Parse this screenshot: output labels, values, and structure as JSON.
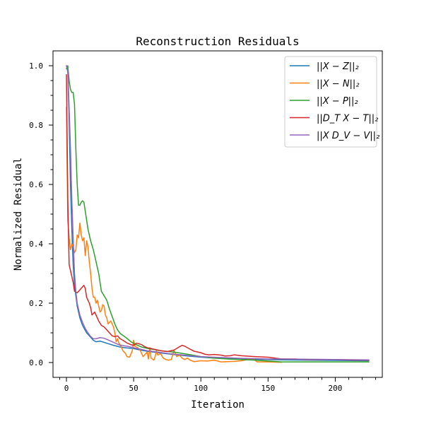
{
  "chart_data": {
    "type": "line",
    "title": "Reconstruction Residuals",
    "xlabel": "Iteration",
    "ylabel": "Normalized Residual",
    "xlim": [
      -10,
      235
    ],
    "ylim": [
      -0.05,
      1.05
    ],
    "x_ticks": [
      0,
      50,
      100,
      150,
      200
    ],
    "x_tick_labels": [
      "0",
      "50",
      "100",
      "150",
      "200"
    ],
    "x_minor_ticks": [
      -5,
      10,
      20,
      30,
      40,
      60,
      70,
      80,
      90,
      110,
      120,
      130,
      140,
      160,
      170,
      180,
      190,
      210,
      220,
      230
    ],
    "y_ticks": [
      0.0,
      0.2,
      0.4,
      0.6,
      0.8,
      1.0
    ],
    "y_tick_labels": [
      "0.0",
      "0.2",
      "0.4",
      "0.6",
      "0.8",
      "1.0"
    ],
    "y_minor_ticks": [
      0.05,
      0.1,
      0.15,
      0.25,
      0.3,
      0.35,
      0.45,
      0.5,
      0.55,
      0.65,
      0.7,
      0.75,
      0.85,
      0.9,
      0.95
    ],
    "grid": false,
    "legend_position": "top-right",
    "series": [
      {
        "name": "||X − Z||₂",
        "color": "#1f77b4",
        "points": [
          [
            0,
            1.0
          ],
          [
            1,
            0.98
          ],
          [
            2,
            0.82
          ],
          [
            3,
            0.6
          ],
          [
            4,
            0.45
          ],
          [
            5,
            0.33
          ],
          [
            6,
            0.26
          ],
          [
            8,
            0.19
          ],
          [
            10,
            0.15
          ],
          [
            12,
            0.125
          ],
          [
            15,
            0.1
          ],
          [
            18,
            0.085
          ],
          [
            20,
            0.075
          ],
          [
            22,
            0.07
          ],
          [
            25,
            0.072
          ],
          [
            28,
            0.068
          ],
          [
            30,
            0.065
          ],
          [
            35,
            0.058
          ],
          [
            40,
            0.052
          ],
          [
            45,
            0.049
          ],
          [
            50,
            0.047
          ],
          [
            55,
            0.042
          ],
          [
            60,
            0.038
          ],
          [
            70,
            0.032
          ],
          [
            80,
            0.027
          ],
          [
            90,
            0.022
          ],
          [
            100,
            0.018
          ],
          [
            110,
            0.015
          ],
          [
            120,
            0.013
          ],
          [
            130,
            0.012
          ],
          [
            140,
            0.011
          ],
          [
            150,
            0.01
          ],
          [
            160,
            0.009
          ],
          [
            180,
            0.008
          ],
          [
            200,
            0.007
          ],
          [
            225,
            0.006
          ]
        ]
      },
      {
        "name": "||X − N||₂",
        "color": "#ff7f0e",
        "points": [
          [
            0,
            0.86
          ],
          [
            1,
            0.48
          ],
          [
            2,
            0.42
          ],
          [
            3,
            0.38
          ],
          [
            4,
            0.4
          ],
          [
            5,
            0.39
          ],
          [
            6,
            0.37
          ],
          [
            7,
            0.38
          ],
          [
            8,
            0.43
          ],
          [
            9,
            0.42
          ],
          [
            10,
            0.47
          ],
          [
            11,
            0.43
          ],
          [
            12,
            0.41
          ],
          [
            13,
            0.42
          ],
          [
            14,
            0.36
          ],
          [
            15,
            0.41
          ],
          [
            16,
            0.39
          ],
          [
            17,
            0.34
          ],
          [
            18,
            0.3
          ],
          [
            19,
            0.25
          ],
          [
            20,
            0.22
          ],
          [
            21,
            0.22
          ],
          [
            22,
            0.2
          ],
          [
            23,
            0.21
          ],
          [
            24,
            0.19
          ],
          [
            25,
            0.17
          ],
          [
            26,
            0.175
          ],
          [
            27,
            0.195
          ],
          [
            28,
            0.19
          ],
          [
            29,
            0.16
          ],
          [
            30,
            0.15
          ],
          [
            31,
            0.13
          ],
          [
            32,
            0.135
          ],
          [
            33,
            0.14
          ],
          [
            34,
            0.13
          ],
          [
            35,
            0.12
          ],
          [
            36,
            0.1
          ],
          [
            37,
            0.07
          ],
          [
            38,
            0.08
          ],
          [
            39,
            0.065
          ],
          [
            40,
            0.06
          ],
          [
            42,
            0.04
          ],
          [
            44,
            0.03
          ],
          [
            45,
            0.02
          ],
          [
            47,
            0.018
          ],
          [
            49,
            0.04
          ],
          [
            50,
            0.075
          ],
          [
            51,
            0.055
          ],
          [
            53,
            0.05
          ],
          [
            55,
            0.04
          ],
          [
            57,
            0.02
          ],
          [
            59,
            0.03
          ],
          [
            60,
            0.035
          ],
          [
            61,
            0.012
          ],
          [
            62,
            0.05
          ],
          [
            63,
            0.015
          ],
          [
            65,
            0.008
          ],
          [
            66,
            0.02
          ],
          [
            67,
            0.04
          ],
          [
            68,
            0.025
          ],
          [
            70,
            0.03
          ],
          [
            72,
            0.015
          ],
          [
            74,
            0.01
          ],
          [
            76,
            0.008
          ],
          [
            78,
            0.01
          ],
          [
            80,
            0.04
          ],
          [
            82,
            0.02
          ],
          [
            84,
            0.025
          ],
          [
            86,
            0.015
          ],
          [
            88,
            0.01
          ],
          [
            90,
            0.015
          ],
          [
            92,
            0.008
          ],
          [
            95,
            0.003
          ],
          [
            100,
            0.006
          ],
          [
            105,
            0.005
          ],
          [
            110,
            0.008
          ],
          [
            115,
            0.002
          ],
          [
            120,
            0.003
          ],
          [
            125,
            0.004
          ],
          [
            130,
            0.006
          ],
          [
            135,
            0.01
          ],
          [
            140,
            0.009
          ],
          [
            142,
            0.002
          ],
          [
            150,
            0.002
          ],
          [
            160,
            0.001
          ]
        ]
      },
      {
        "name": "||X − P||₂",
        "color": "#2ca02c",
        "points": [
          [
            0,
            0.99
          ],
          [
            1,
            1.0
          ],
          [
            2,
            0.95
          ],
          [
            3,
            0.92
          ],
          [
            4,
            0.91
          ],
          [
            5,
            0.91
          ],
          [
            6,
            0.87
          ],
          [
            7,
            0.72
          ],
          [
            8,
            0.6
          ],
          [
            9,
            0.53
          ],
          [
            10,
            0.53
          ],
          [
            11,
            0.54
          ],
          [
            12,
            0.545
          ],
          [
            13,
            0.54
          ],
          [
            14,
            0.51
          ],
          [
            15,
            0.48
          ],
          [
            16,
            0.45
          ],
          [
            18,
            0.41
          ],
          [
            20,
            0.38
          ],
          [
            22,
            0.34
          ],
          [
            24,
            0.3
          ],
          [
            25,
            0.27
          ],
          [
            26,
            0.24
          ],
          [
            28,
            0.225
          ],
          [
            30,
            0.21
          ],
          [
            32,
            0.18
          ],
          [
            34,
            0.155
          ],
          [
            36,
            0.13
          ],
          [
            38,
            0.11
          ],
          [
            40,
            0.098
          ],
          [
            44,
            0.085
          ],
          [
            48,
            0.07
          ],
          [
            52,
            0.06
          ],
          [
            56,
            0.052
          ],
          [
            60,
            0.048
          ],
          [
            70,
            0.04
          ],
          [
            80,
            0.035
          ],
          [
            90,
            0.028
          ],
          [
            100,
            0.02
          ],
          [
            110,
            0.015
          ],
          [
            120,
            0.012
          ],
          [
            130,
            0.01
          ],
          [
            140,
            0.008
          ],
          [
            150,
            0.005
          ],
          [
            160,
            0.002
          ],
          [
            180,
            0.002
          ],
          [
            200,
            0.002
          ],
          [
            225,
            0.002
          ]
        ]
      },
      {
        "name": "||D_T X − T||₂",
        "color": "#d62728",
        "points": [
          [
            0,
            0.97
          ],
          [
            1,
            0.55
          ],
          [
            2,
            0.33
          ],
          [
            3,
            0.31
          ],
          [
            4,
            0.29
          ],
          [
            5,
            0.27
          ],
          [
            6,
            0.24
          ],
          [
            8,
            0.235
          ],
          [
            10,
            0.245
          ],
          [
            12,
            0.255
          ],
          [
            13,
            0.26
          ],
          [
            14,
            0.25
          ],
          [
            15,
            0.22
          ],
          [
            16,
            0.21
          ],
          [
            17,
            0.2
          ],
          [
            18,
            0.185
          ],
          [
            19,
            0.16
          ],
          [
            20,
            0.165
          ],
          [
            21,
            0.17
          ],
          [
            22,
            0.16
          ],
          [
            24,
            0.14
          ],
          [
            26,
            0.125
          ],
          [
            28,
            0.12
          ],
          [
            30,
            0.11
          ],
          [
            32,
            0.1
          ],
          [
            34,
            0.09
          ],
          [
            36,
            0.087
          ],
          [
            38,
            0.09
          ],
          [
            40,
            0.08
          ],
          [
            42,
            0.075
          ],
          [
            45,
            0.066
          ],
          [
            48,
            0.06
          ],
          [
            50,
            0.058
          ],
          [
            52,
            0.065
          ],
          [
            54,
            0.063
          ],
          [
            56,
            0.06
          ],
          [
            58,
            0.054
          ],
          [
            60,
            0.05
          ],
          [
            65,
            0.045
          ],
          [
            70,
            0.04
          ],
          [
            75,
            0.037
          ],
          [
            80,
            0.042
          ],
          [
            83,
            0.05
          ],
          [
            86,
            0.058
          ],
          [
            88,
            0.055
          ],
          [
            92,
            0.045
          ],
          [
            95,
            0.038
          ],
          [
            100,
            0.033
          ],
          [
            103,
            0.028
          ],
          [
            106,
            0.026
          ],
          [
            110,
            0.027
          ],
          [
            115,
            0.025
          ],
          [
            118,
            0.022
          ],
          [
            122,
            0.023
          ],
          [
            125,
            0.026
          ],
          [
            130,
            0.023
          ],
          [
            140,
            0.02
          ],
          [
            150,
            0.018
          ],
          [
            155,
            0.015
          ],
          [
            160,
            0.012
          ],
          [
            170,
            0.012
          ],
          [
            180,
            0.01
          ],
          [
            190,
            0.01
          ],
          [
            200,
            0.01
          ],
          [
            210,
            0.009
          ],
          [
            225,
            0.008
          ]
        ]
      },
      {
        "name": "||X D_V − V||₂",
        "color": "#9467bd",
        "points": [
          [
            0,
            1.0
          ],
          [
            1,
            0.99
          ],
          [
            2,
            0.86
          ],
          [
            3,
            0.72
          ],
          [
            4,
            0.55
          ],
          [
            5,
            0.42
          ],
          [
            6,
            0.3
          ],
          [
            7,
            0.24
          ],
          [
            8,
            0.2
          ],
          [
            10,
            0.16
          ],
          [
            12,
            0.135
          ],
          [
            14,
            0.115
          ],
          [
            16,
            0.1
          ],
          [
            18,
            0.088
          ],
          [
            20,
            0.08
          ],
          [
            22,
            0.08
          ],
          [
            25,
            0.084
          ],
          [
            28,
            0.082
          ],
          [
            30,
            0.078
          ],
          [
            35,
            0.068
          ],
          [
            40,
            0.058
          ],
          [
            45,
            0.055
          ],
          [
            50,
            0.05
          ],
          [
            55,
            0.045
          ],
          [
            60,
            0.04
          ],
          [
            70,
            0.034
          ],
          [
            80,
            0.028
          ],
          [
            90,
            0.024
          ],
          [
            100,
            0.02
          ],
          [
            110,
            0.018
          ],
          [
            120,
            0.016
          ],
          [
            130,
            0.014
          ],
          [
            140,
            0.013
          ],
          [
            150,
            0.012
          ],
          [
            160,
            0.012
          ],
          [
            180,
            0.011
          ],
          [
            200,
            0.01
          ],
          [
            225,
            0.009
          ]
        ]
      }
    ]
  }
}
